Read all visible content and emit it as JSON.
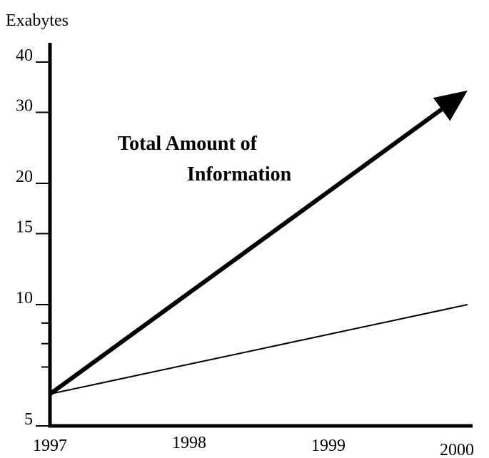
{
  "chart_data": {
    "type": "line",
    "y_axis_label": "Exabytes",
    "annotation": [
      "Total Amount of",
      "Information"
    ],
    "x": [
      1997,
      2000
    ],
    "xlim": [
      1997,
      2000
    ],
    "xticks": [
      1997,
      1998,
      1999,
      2000
    ],
    "ylim": [
      5,
      40
    ],
    "yticks": [
      5,
      10,
      15,
      20,
      30,
      40
    ],
    "minor_yticks": [
      7,
      8,
      9
    ],
    "log_scale_y": true,
    "grid": false,
    "series": [
      {
        "color": "#000000",
        "values": [
          6,
          34
        ],
        "arrow": true,
        "width": 6
      },
      {
        "color": "#000000",
        "values": [
          6,
          10
        ],
        "arrow": false,
        "width": 2
      }
    ]
  }
}
